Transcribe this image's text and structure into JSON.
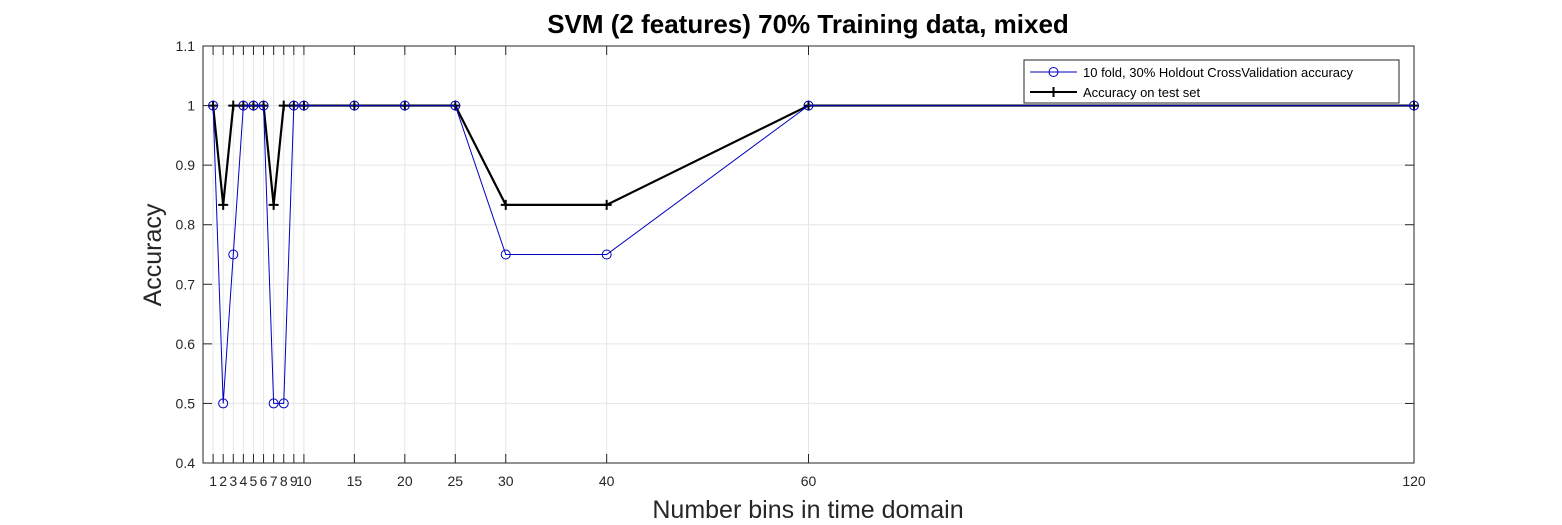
{
  "chart_data": {
    "type": "line",
    "title": "SVM (2 features) 70% Training data, mixed",
    "xlabel": "Number bins in time domain",
    "ylabel": "Accuracy",
    "xlim": [
      0,
      120
    ],
    "ylim": [
      0.4,
      1.1
    ],
    "xticks": [
      1,
      2,
      3,
      4,
      5,
      6,
      7,
      8,
      9,
      10,
      15,
      20,
      25,
      30,
      40,
      60,
      120
    ],
    "yticks": [
      0.4,
      0.5,
      0.6,
      0.7,
      0.8,
      0.9,
      1,
      1.1
    ],
    "grid": true,
    "legend_position": "top-right",
    "x": [
      1,
      2,
      3,
      4,
      5,
      6,
      7,
      8,
      9,
      10,
      15,
      20,
      25,
      30,
      40,
      60,
      120
    ],
    "series": [
      {
        "name": "10 fold, 30% Holdout CrossValidation accuracy",
        "color": "#0000bf",
        "marker": "circle",
        "values": [
          1,
          0.5,
          0.75,
          1,
          1,
          1,
          0.5,
          0.5,
          1,
          1,
          1,
          1,
          1,
          0.75,
          0.75,
          1,
          1
        ]
      },
      {
        "name": "Accuracy on test set",
        "color": "#000000",
        "marker": "plus",
        "values": [
          1,
          0.8333,
          1,
          1,
          1,
          1,
          0.8333,
          1,
          1,
          1,
          1,
          1,
          1,
          0.8333,
          0.8333,
          1,
          1
        ]
      }
    ]
  }
}
